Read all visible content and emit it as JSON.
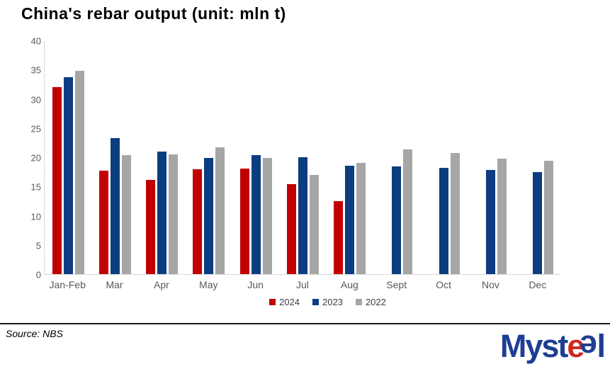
{
  "title": "China's rebar output (unit: mln t)",
  "source": {
    "text": "Source: NBS"
  },
  "logo": {
    "name": "Mysteel",
    "parts": [
      {
        "text": "Myst",
        "color": "#1e3e93"
      },
      {
        "text": "e",
        "color": "#d02720"
      },
      {
        "text": "e",
        "color": "#1e3e93",
        "flipped": true
      },
      {
        "text": "l",
        "color": "#1e3e93"
      }
    ]
  },
  "colors": {
    "axis_line": "#d9d9d9",
    "tick_label": "#595959",
    "series_2024": "#c00000",
    "series_2023": "#0b3d80",
    "series_2022": "#a6a6a6"
  },
  "chart_data": {
    "type": "bar",
    "title": "China's rebar output (unit: mln t)",
    "xlabel": "",
    "ylabel": "",
    "categories": [
      "Jan-Feb",
      "Mar",
      "Apr",
      "May",
      "Jun",
      "Jul",
      "Aug",
      "Sept",
      "Oct",
      "Nov",
      "Dec"
    ],
    "series": [
      {
        "name": "2024",
        "color": "#c00000",
        "values": [
          32.1,
          17.7,
          16.2,
          18.0,
          18.1,
          15.4,
          12.5,
          null,
          null,
          null,
          null
        ]
      },
      {
        "name": "2023",
        "color": "#0b3d80",
        "values": [
          33.8,
          23.3,
          21.0,
          19.9,
          20.4,
          20.1,
          18.6,
          18.5,
          18.2,
          17.9,
          17.5
        ]
      },
      {
        "name": "2022",
        "color": "#a6a6a6",
        "values": [
          34.9,
          20.4,
          20.5,
          21.8,
          20.0,
          17.0,
          19.1,
          21.4,
          20.8,
          19.8,
          19.4
        ]
      }
    ],
    "ylim": [
      0,
      40
    ],
    "yticks": [
      0,
      5,
      10,
      15,
      20,
      25,
      30,
      35,
      40
    ],
    "grid": false,
    "legend_position": "bottom"
  }
}
